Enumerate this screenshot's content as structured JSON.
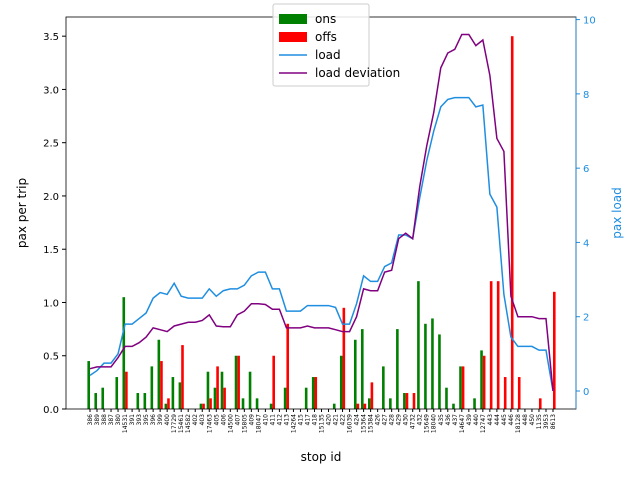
{
  "chart_data": {
    "type": "bar",
    "xlabel": "stop id",
    "ylabel": "pax per trip",
    "y2label": "pax load",
    "legend": "upper center",
    "categories": [
      "386",
      "389",
      "388",
      "387",
      "380",
      "14531",
      "391",
      "393",
      "395",
      "396",
      "399",
      "400",
      "17729",
      "15461",
      "14582",
      "402",
      "403",
      "17463",
      "405",
      "406",
      "14500",
      "407",
      "15805",
      "409",
      "18047",
      "410",
      "411",
      "412",
      "413",
      "14264",
      "415",
      "417",
      "418",
      "15135",
      "420",
      "421",
      "422",
      "16039",
      "424",
      "15364",
      "15384",
      "426",
      "427",
      "428",
      "429",
      "430",
      "4732",
      "432",
      "15649",
      "18040",
      "435",
      "436",
      "437",
      "14647",
      "439",
      "440",
      "12747",
      "443",
      "444",
      "445",
      "446",
      "18128",
      "448",
      "450",
      "1135",
      "3953",
      "8613"
    ],
    "ylim": [
      0,
      3.68
    ],
    "yticks": [
      {
        "value": 0,
        "label": "0.0"
      },
      {
        "value": 0.5,
        "label": "0.5"
      },
      {
        "value": 1,
        "label": "1.0"
      },
      {
        "value": 1.5,
        "label": "1.5"
      },
      {
        "value": 2,
        "label": "2.0"
      },
      {
        "value": 2.5,
        "label": "2.5"
      },
      {
        "value": 3,
        "label": "3.0"
      },
      {
        "value": 3.5,
        "label": "3.5"
      }
    ],
    "y2lim": [
      -0.485,
      10.07
    ],
    "y2ticks": [
      0,
      2,
      4,
      6,
      8,
      10
    ],
    "y2color": "#1f8ee0",
    "series": [
      {
        "name": "ons",
        "type": "bar",
        "color": "#008000",
        "values": [
          0.45,
          0.15,
          0.2,
          0,
          0.3,
          1.05,
          0,
          0.15,
          0.15,
          0.4,
          0.65,
          0.05,
          0.3,
          0.25,
          0,
          0,
          0.05,
          0.35,
          0.2,
          0.35,
          0,
          0.5,
          0.1,
          0.35,
          0.1,
          0,
          0.05,
          0,
          0.2,
          0,
          0,
          0.2,
          0.3,
          0,
          0,
          0.05,
          0.5,
          0,
          0.65,
          0.75,
          0.1,
          0,
          0.4,
          0.1,
          0.75,
          0.15,
          0,
          1.2,
          0.8,
          0.85,
          0.7,
          0.2,
          0.05,
          0.4,
          0,
          0.1,
          0.55,
          0,
          0,
          0,
          0,
          0,
          0,
          0,
          0,
          0,
          0
        ]
      },
      {
        "name": "offs",
        "type": "bar",
        "color": "#ff0000",
        "values": [
          0,
          0,
          0,
          0,
          0,
          0.35,
          0,
          0,
          0,
          0,
          0.45,
          0.1,
          0,
          0.6,
          0,
          0,
          0.05,
          0.1,
          0.4,
          0.2,
          0,
          0.5,
          0,
          0,
          0,
          0,
          0.5,
          0,
          0.8,
          0,
          0,
          0,
          0.3,
          0,
          0,
          0,
          0.95,
          0,
          0.05,
          0.05,
          0.25,
          0,
          0,
          0,
          0,
          0.15,
          0.15,
          0,
          0,
          0,
          0,
          0,
          0,
          0.4,
          0,
          0,
          0.5,
          1.2,
          1.2,
          0.3,
          3.5,
          0.3,
          0,
          0,
          0.1,
          0,
          1.1
        ]
      },
      {
        "name": "load",
        "type": "line",
        "axis": "y2",
        "color": "#1f8ee0",
        "values": [
          0.42,
          0.55,
          0.75,
          0.75,
          1.0,
          1.8,
          1.8,
          1.95,
          2.1,
          2.5,
          2.65,
          2.6,
          2.9,
          2.55,
          2.5,
          2.5,
          2.5,
          2.75,
          2.55,
          2.7,
          2.75,
          2.75,
          2.85,
          3.1,
          3.2,
          3.2,
          2.75,
          2.75,
          2.15,
          2.15,
          2.15,
          2.3,
          2.3,
          2.3,
          2.3,
          2.25,
          1.8,
          1.8,
          2.35,
          3.1,
          2.95,
          2.95,
          3.35,
          3.45,
          4.2,
          4.2,
          4.1,
          5.2,
          6.2,
          7.0,
          7.65,
          7.85,
          7.9,
          7.9,
          7.9,
          7.65,
          7.7,
          5.3,
          4.95,
          2.6,
          1.45,
          1.2,
          1.2,
          1.2,
          1.1,
          1.1,
          0
        ]
      },
      {
        "name": "load deviation",
        "type": "line",
        "axis": "y2",
        "color": "#800080",
        "values": [
          0.6,
          0.65,
          0.65,
          0.65,
          0.9,
          1.2,
          1.2,
          1.3,
          1.45,
          1.7,
          1.65,
          1.6,
          1.75,
          1.8,
          1.85,
          1.85,
          1.9,
          2.05,
          1.75,
          1.73,
          1.73,
          2.05,
          2.15,
          2.35,
          2.35,
          2.33,
          2.2,
          2.2,
          1.7,
          1.7,
          1.7,
          1.75,
          1.7,
          1.7,
          1.7,
          1.65,
          1.6,
          1.6,
          2.0,
          2.75,
          2.7,
          2.7,
          3.2,
          3.25,
          4.1,
          4.25,
          4.1,
          5.5,
          6.6,
          7.5,
          8.7,
          9.1,
          9.2,
          9.6,
          9.6,
          9.3,
          9.45,
          8.5,
          6.8,
          6.45,
          2.55,
          2.0,
          2.0,
          2.0,
          1.95,
          1.95,
          0
        ]
      }
    ]
  }
}
